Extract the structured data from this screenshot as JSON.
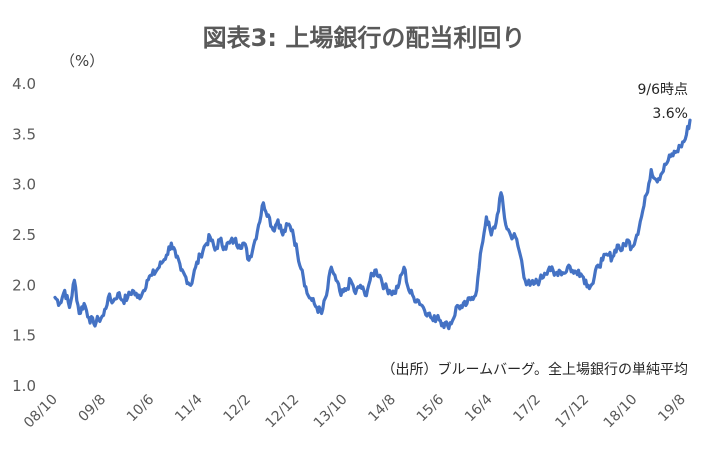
{
  "chart_data": {
    "type": "line",
    "title": "図表3: 上場銀行の配当利回り",
    "unit_label": "（%）",
    "ylim": [
      1.0,
      4.0
    ],
    "y_ticks": [
      "1.0",
      "1.5",
      "2.0",
      "2.5",
      "3.0",
      "3.5",
      "4.0"
    ],
    "x_tick_labels": [
      "08/10",
      "09/8",
      "10/6",
      "11/4",
      "12/2",
      "12/12",
      "13/10",
      "14/8",
      "15/6",
      "16/4",
      "17/2",
      "17/12",
      "18/10",
      "19/8"
    ],
    "grid": false,
    "legend": "none",
    "line_color": "#4472c4",
    "annotation": {
      "label": "9/6時点",
      "value_text": "3.6%"
    },
    "source": "（出所）ブルームバーグ。全上場銀行の単純平均",
    "series": [
      {
        "points": [
          [
            "2008-10",
            1.88
          ],
          [
            "2008-11",
            1.82
          ],
          [
            "2008-12",
            1.95
          ],
          [
            "2009-01",
            1.78
          ],
          [
            "2009-02",
            2.05
          ],
          [
            "2009-03",
            1.72
          ],
          [
            "2009-04",
            1.82
          ],
          [
            "2009-05",
            1.68
          ],
          [
            "2009-06",
            1.62
          ],
          [
            "2009-07",
            1.66
          ],
          [
            "2009-08",
            1.7
          ],
          [
            "2009-09",
            1.88
          ],
          [
            "2009-10",
            1.84
          ],
          [
            "2009-11",
            1.92
          ],
          [
            "2009-12",
            1.85
          ],
          [
            "2010-01",
            1.88
          ],
          [
            "2010-02",
            1.95
          ],
          [
            "2010-03",
            1.88
          ],
          [
            "2010-04",
            1.92
          ],
          [
            "2010-05",
            2.05
          ],
          [
            "2010-06",
            2.1
          ],
          [
            "2010-07",
            2.15
          ],
          [
            "2010-08",
            2.22
          ],
          [
            "2010-09",
            2.3
          ],
          [
            "2010-10",
            2.42
          ],
          [
            "2010-11",
            2.28
          ],
          [
            "2010-12",
            2.15
          ],
          [
            "2011-01",
            2.08
          ],
          [
            "2011-02",
            2.0
          ],
          [
            "2011-03",
            2.18
          ],
          [
            "2011-04",
            2.3
          ],
          [
            "2011-05",
            2.4
          ],
          [
            "2011-06",
            2.48
          ],
          [
            "2011-07",
            2.35
          ],
          [
            "2011-08",
            2.45
          ],
          [
            "2011-09",
            2.38
          ],
          [
            "2011-10",
            2.42
          ],
          [
            "2011-11",
            2.45
          ],
          [
            "2011-12",
            2.4
          ],
          [
            "2012-01",
            2.42
          ],
          [
            "2012-02",
            2.25
          ],
          [
            "2012-03",
            2.4
          ],
          [
            "2012-04",
            2.6
          ],
          [
            "2012-05",
            2.82
          ],
          [
            "2012-06",
            2.7
          ],
          [
            "2012-07",
            2.55
          ],
          [
            "2012-08",
            2.65
          ],
          [
            "2012-09",
            2.5
          ],
          [
            "2012-10",
            2.6
          ],
          [
            "2012-11",
            2.55
          ],
          [
            "2012-12",
            2.32
          ],
          [
            "2013-01",
            2.15
          ],
          [
            "2013-02",
            1.92
          ],
          [
            "2013-03",
            1.85
          ],
          [
            "2013-04",
            1.78
          ],
          [
            "2013-05",
            1.72
          ],
          [
            "2013-06",
            1.9
          ],
          [
            "2013-07",
            2.18
          ],
          [
            "2013-08",
            2.05
          ],
          [
            "2013-09",
            1.9
          ],
          [
            "2013-10",
            1.95
          ],
          [
            "2013-11",
            2.05
          ],
          [
            "2013-12",
            1.92
          ],
          [
            "2014-01",
            2.0
          ],
          [
            "2014-02",
            1.9
          ],
          [
            "2014-03",
            2.05
          ],
          [
            "2014-04",
            2.15
          ],
          [
            "2014-05",
            2.1
          ],
          [
            "2014-06",
            1.98
          ],
          [
            "2014-07",
            1.95
          ],
          [
            "2014-08",
            1.92
          ],
          [
            "2014-09",
            2.02
          ],
          [
            "2014-10",
            2.18
          ],
          [
            "2014-11",
            1.95
          ],
          [
            "2014-12",
            1.88
          ],
          [
            "2015-01",
            1.85
          ],
          [
            "2015-02",
            1.78
          ],
          [
            "2015-03",
            1.72
          ],
          [
            "2015-04",
            1.65
          ],
          [
            "2015-05",
            1.7
          ],
          [
            "2015-06",
            1.62
          ],
          [
            "2015-07",
            1.6
          ],
          [
            "2015-08",
            1.65
          ],
          [
            "2015-09",
            1.8
          ],
          [
            "2015-10",
            1.78
          ],
          [
            "2015-11",
            1.82
          ],
          [
            "2015-12",
            1.88
          ],
          [
            "2016-01",
            1.95
          ],
          [
            "2016-02",
            2.38
          ],
          [
            "2016-03",
            2.68
          ],
          [
            "2016-04",
            2.5
          ],
          [
            "2016-05",
            2.62
          ],
          [
            "2016-06",
            2.92
          ],
          [
            "2016-07",
            2.6
          ],
          [
            "2016-08",
            2.5
          ],
          [
            "2016-09",
            2.48
          ],
          [
            "2016-10",
            2.3
          ],
          [
            "2016-11",
            2.05
          ],
          [
            "2016-12",
            2.0
          ],
          [
            "2017-01",
            2.02
          ],
          [
            "2017-02",
            2.05
          ],
          [
            "2017-03",
            2.12
          ],
          [
            "2017-04",
            2.18
          ],
          [
            "2017-05",
            2.1
          ],
          [
            "2017-06",
            2.15
          ],
          [
            "2017-07",
            2.12
          ],
          [
            "2017-08",
            2.2
          ],
          [
            "2017-09",
            2.12
          ],
          [
            "2017-10",
            2.15
          ],
          [
            "2017-11",
            2.08
          ],
          [
            "2017-12",
            2.0
          ],
          [
            "2018-01",
            2.02
          ],
          [
            "2018-02",
            2.2
          ],
          [
            "2018-03",
            2.25
          ],
          [
            "2018-04",
            2.3
          ],
          [
            "2018-05",
            2.28
          ],
          [
            "2018-06",
            2.4
          ],
          [
            "2018-07",
            2.35
          ],
          [
            "2018-08",
            2.45
          ],
          [
            "2018-09",
            2.38
          ],
          [
            "2018-10",
            2.5
          ],
          [
            "2018-11",
            2.68
          ],
          [
            "2018-12",
            2.9
          ],
          [
            "2019-01",
            3.15
          ],
          [
            "2019-02",
            3.05
          ],
          [
            "2019-03",
            3.1
          ],
          [
            "2019-04",
            3.2
          ],
          [
            "2019-05",
            3.28
          ],
          [
            "2019-06",
            3.32
          ],
          [
            "2019-07",
            3.38
          ],
          [
            "2019-08",
            3.45
          ],
          [
            "2019-09",
            3.64
          ]
        ]
      }
    ]
  }
}
